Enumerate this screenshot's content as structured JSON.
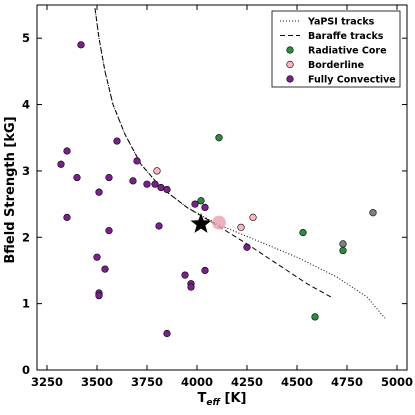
{
  "chart_data": {
    "type": "scatter",
    "xlabel_main": "T",
    "xlabel_sub": "eff",
    "xlabel_unit": " [K]",
    "ylabel": "Bfield Strength [kG]",
    "xlim": [
      3200,
      5050
    ],
    "ylim": [
      0,
      5.5
    ],
    "xticks": [
      3250,
      3500,
      3750,
      4000,
      4250,
      4500,
      4750,
      5000
    ],
    "yticks": [
      0,
      1,
      2,
      3,
      4,
      5
    ],
    "grid": false,
    "legend_position": "top-right",
    "colors": {
      "radiative": "#2e8b3e",
      "borderline": "#ffb6c1",
      "convective": "#7b1f8c",
      "highlight": "#e8a0b0",
      "grey": "#808080"
    },
    "lines": [
      {
        "name": "YaPSI tracks",
        "style": "dotted",
        "points": [
          [
            3490,
            5.45
          ],
          [
            3510,
            5.0
          ],
          [
            3540,
            4.5
          ],
          [
            3580,
            4.0
          ],
          [
            3640,
            3.55
          ],
          [
            3720,
            3.1
          ],
          [
            3820,
            2.75
          ],
          [
            3950,
            2.45
          ],
          [
            4100,
            2.2
          ],
          [
            4300,
            1.95
          ],
          [
            4500,
            1.7
          ],
          [
            4700,
            1.4
          ],
          [
            4850,
            1.1
          ],
          [
            4920,
            0.85
          ],
          [
            4940,
            0.78
          ]
        ]
      },
      {
        "name": "Baraffe tracks",
        "style": "dashed",
        "points": [
          [
            3490,
            5.45
          ],
          [
            3510,
            5.0
          ],
          [
            3540,
            4.5
          ],
          [
            3580,
            4.0
          ],
          [
            3640,
            3.55
          ],
          [
            3720,
            3.1
          ],
          [
            3820,
            2.75
          ],
          [
            3950,
            2.45
          ],
          [
            4100,
            2.18
          ],
          [
            4250,
            1.9
          ],
          [
            4400,
            1.6
          ],
          [
            4550,
            1.3
          ],
          [
            4670,
            1.1
          ]
        ]
      }
    ],
    "series": [
      {
        "name": "Radiative Core",
        "points": [
          [
            4020,
            2.55
          ],
          [
            4110,
            3.5
          ],
          [
            4530,
            2.07
          ],
          [
            4730,
            1.8
          ],
          [
            4590,
            0.8
          ]
        ]
      },
      {
        "name": "Borderline",
        "points": [
          [
            3800,
            3.0
          ],
          [
            4280,
            2.3
          ],
          [
            4220,
            2.15
          ]
        ]
      },
      {
        "name": "Fully Convective",
        "points": [
          [
            3420,
            4.9
          ],
          [
            3320,
            3.1
          ],
          [
            3350,
            3.3
          ],
          [
            3400,
            2.9
          ],
          [
            3350,
            2.3
          ],
          [
            3510,
            2.68
          ],
          [
            3560,
            2.9
          ],
          [
            3600,
            3.45
          ],
          [
            3680,
            2.85
          ],
          [
            3700,
            3.15
          ],
          [
            3750,
            2.8
          ],
          [
            3790,
            2.8
          ],
          [
            3820,
            2.75
          ],
          [
            3850,
            2.72
          ],
          [
            3810,
            2.17
          ],
          [
            3560,
            2.1
          ],
          [
            3500,
            1.7
          ],
          [
            3540,
            1.52
          ],
          [
            3510,
            1.16
          ],
          [
            3510,
            1.12
          ],
          [
            3940,
            1.43
          ],
          [
            3970,
            1.3
          ],
          [
            3970,
            1.25
          ],
          [
            4040,
            1.5
          ],
          [
            3850,
            0.55
          ],
          [
            4250,
            1.85
          ],
          [
            3990,
            2.5
          ],
          [
            4040,
            2.45
          ]
        ]
      }
    ],
    "grey_points": [
      [
        4880,
        2.37
      ],
      [
        4730,
        1.9
      ]
    ],
    "highlight_point": [
      4110,
      2.22
    ],
    "star_point": [
      4020,
      2.2
    ]
  }
}
